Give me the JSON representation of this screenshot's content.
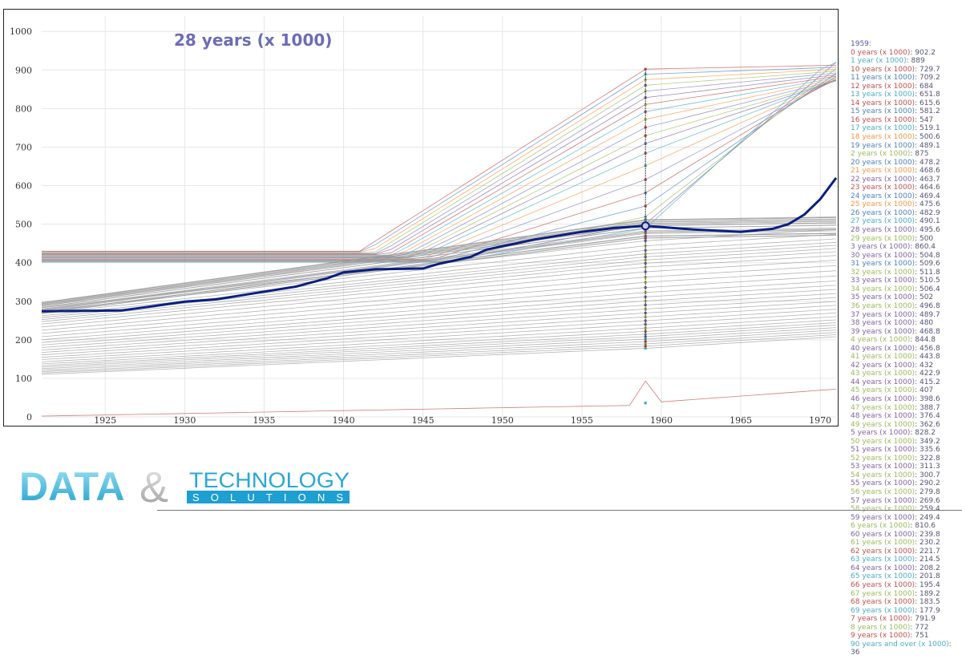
{
  "chart_data": {
    "type": "line",
    "title": "28 years (x 1000)",
    "xlim": [
      1921,
      1971
    ],
    "ylim": [
      0,
      1040
    ],
    "x_ticks": [
      1925,
      1930,
      1935,
      1940,
      1945,
      1950,
      1955,
      1960,
      1965,
      1970
    ],
    "y_ticks": [
      0,
      100,
      200,
      300,
      400,
      500,
      600,
      700,
      800,
      900,
      1000
    ],
    "grid": true,
    "highlight_year": 1959,
    "highlight_series": "28 years (x 1000)",
    "highlight_series_points": [
      [
        1921,
        274
      ],
      [
        1926,
        276
      ],
      [
        1928,
        287
      ],
      [
        1930,
        299
      ],
      [
        1932,
        305
      ],
      [
        1935,
        325
      ],
      [
        1937,
        338
      ],
      [
        1939,
        360
      ],
      [
        1940,
        375
      ],
      [
        1942,
        383
      ],
      [
        1945,
        385
      ],
      [
        1946,
        397
      ],
      [
        1948,
        415
      ],
      [
        1949,
        434
      ],
      [
        1952,
        460
      ],
      [
        1955,
        480
      ],
      [
        1957,
        490
      ],
      [
        1959,
        495.6
      ],
      [
        1962,
        486
      ],
      [
        1965,
        480
      ],
      [
        1967,
        488
      ],
      [
        1968,
        500
      ],
      [
        1969,
        525
      ],
      [
        1970,
        565
      ],
      [
        1971,
        620
      ]
    ],
    "series_colors": [
      "#c0504d",
      "#4f81bd",
      "#9bbb59",
      "#8064a2",
      "#4bacc6",
      "#f79646",
      "#7f7fbf"
    ]
  },
  "tooltip": {
    "date": "1959:",
    "entries": [
      {
        "label": "0 years (x 1000)",
        "value": "902.2",
        "color": "#c0504d"
      },
      {
        "label": "1 year (x 1000)",
        "value": "889",
        "color": "#4bacc6"
      },
      {
        "label": "10 years (x 1000)",
        "value": "729.7",
        "color": "#c0504d"
      },
      {
        "label": "11 years (x 1000)",
        "value": "709.2",
        "color": "#4f81bd"
      },
      {
        "label": "12 years (x 1000)",
        "value": "684",
        "color": "#c0504d"
      },
      {
        "label": "13 years (x 1000)",
        "value": "651.8",
        "color": "#4bacc6"
      },
      {
        "label": "14 years (x 1000)",
        "value": "615.6",
        "color": "#c0504d"
      },
      {
        "label": "15 years (x 1000)",
        "value": "581.2",
        "color": "#4f81bd"
      },
      {
        "label": "16 years (x 1000)",
        "value": "547",
        "color": "#c0504d"
      },
      {
        "label": "17 years (x 1000)",
        "value": "519.1",
        "color": "#4bacc6"
      },
      {
        "label": "18 years (x 1000)",
        "value": "500.6",
        "color": "#f79646"
      },
      {
        "label": "19 years (x 1000)",
        "value": "489.1",
        "color": "#4f81bd"
      },
      {
        "label": "2 years (x 1000)",
        "value": "875",
        "color": "#9bbb59"
      },
      {
        "label": "20 years (x 1000)",
        "value": "478.2",
        "color": "#4f81bd"
      },
      {
        "label": "21 years (x 1000)",
        "value": "468.6",
        "color": "#f79646"
      },
      {
        "label": "22 years (x 1000)",
        "value": "463.7",
        "color": "#8064a2"
      },
      {
        "label": "23 years (x 1000)",
        "value": "464.6",
        "color": "#c0504d"
      },
      {
        "label": "24 years (x 1000)",
        "value": "469.4",
        "color": "#4f81bd"
      },
      {
        "label": "25 years (x 1000)",
        "value": "475.6",
        "color": "#f79646"
      },
      {
        "label": "26 years (x 1000)",
        "value": "482.9",
        "color": "#4f81bd"
      },
      {
        "label": "27 years (x 1000)",
        "value": "490.1",
        "color": "#4bacc6"
      },
      {
        "label": "28 years (x 1000)",
        "value": "495.6",
        "color": "#8064a2"
      },
      {
        "label": "29 years (x 1000)",
        "value": "500",
        "color": "#9bbb59"
      },
      {
        "label": "3 years (x 1000)",
        "value": "860.4",
        "color": "#8064a2"
      },
      {
        "label": "30 years (x 1000)",
        "value": "504.8",
        "color": "#8064a2"
      },
      {
        "label": "31 years (x 1000)",
        "value": "509.6",
        "color": "#4f81bd"
      },
      {
        "label": "32 years (x 1000)",
        "value": "511.8",
        "color": "#9bbb59"
      },
      {
        "label": "33 years (x 1000)",
        "value": "510.5",
        "color": "#8064a2"
      },
      {
        "label": "34 years (x 1000)",
        "value": "506.4",
        "color": "#9bbb59"
      },
      {
        "label": "35 years (x 1000)",
        "value": "502",
        "color": "#8064a2"
      },
      {
        "label": "36 years (x 1000)",
        "value": "496.8",
        "color": "#9bbb59"
      },
      {
        "label": "37 years (x 1000)",
        "value": "489.7",
        "color": "#8064a2"
      },
      {
        "label": "38 years (x 1000)",
        "value": "480",
        "color": "#8064a2"
      },
      {
        "label": "39 years (x 1000)",
        "value": "468.8",
        "color": "#8064a2"
      },
      {
        "label": "4 years (x 1000)",
        "value": "844.8",
        "color": "#9bbb59"
      },
      {
        "label": "40 years (x 1000)",
        "value": "456.8",
        "color": "#8064a2"
      },
      {
        "label": "41 years (x 1000)",
        "value": "443.8",
        "color": "#9bbb59"
      },
      {
        "label": "42 years (x 1000)",
        "value": "432",
        "color": "#8064a2"
      },
      {
        "label": "43 years (x 1000)",
        "value": "422.9",
        "color": "#9bbb59"
      },
      {
        "label": "44 years (x 1000)",
        "value": "415.2",
        "color": "#8064a2"
      },
      {
        "label": "45 years (x 1000)",
        "value": "407",
        "color": "#9bbb59"
      },
      {
        "label": "46 years (x 1000)",
        "value": "398.6",
        "color": "#8064a2"
      },
      {
        "label": "47 years (x 1000)",
        "value": "388.7",
        "color": "#9bbb59"
      },
      {
        "label": "48 years (x 1000)",
        "value": "376.4",
        "color": "#8064a2"
      },
      {
        "label": "49 years (x 1000)",
        "value": "362.6",
        "color": "#9bbb59"
      },
      {
        "label": "5 years (x 1000)",
        "value": "828.2",
        "color": "#8064a2"
      },
      {
        "label": "50 years (x 1000)",
        "value": "349.2",
        "color": "#9bbb59"
      },
      {
        "label": "51 years (x 1000)",
        "value": "335.6",
        "color": "#8064a2"
      },
      {
        "label": "52 years (x 1000)",
        "value": "322.8",
        "color": "#9bbb59"
      },
      {
        "label": "53 years (x 1000)",
        "value": "311.3",
        "color": "#8064a2"
      },
      {
        "label": "54 years (x 1000)",
        "value": "300.7",
        "color": "#9bbb59"
      },
      {
        "label": "55 years (x 1000)",
        "value": "290.2",
        "color": "#8064a2"
      },
      {
        "label": "56 years (x 1000)",
        "value": "279.8",
        "color": "#9bbb59"
      },
      {
        "label": "57 years (x 1000)",
        "value": "269.6",
        "color": "#8064a2"
      },
      {
        "label": "58 years (x 1000)",
        "value": "259.4",
        "color": "#9bbb59"
      },
      {
        "label": "59 years (x 1000)",
        "value": "249.4",
        "color": "#8064a2"
      },
      {
        "label": "6 years (x 1000)",
        "value": "810.6",
        "color": "#9bbb59"
      },
      {
        "label": "60 years (x 1000)",
        "value": "239.8",
        "color": "#8064a2"
      },
      {
        "label": "61 years (x 1000)",
        "value": "230.2",
        "color": "#9bbb59"
      },
      {
        "label": "62 years (x 1000)",
        "value": "221.7",
        "color": "#c0504d"
      },
      {
        "label": "63 years (x 1000)",
        "value": "214.5",
        "color": "#4bacc6"
      },
      {
        "label": "64 years (x 1000)",
        "value": "208.2",
        "color": "#8064a2"
      },
      {
        "label": "65 years (x 1000)",
        "value": "201.8",
        "color": "#4bacc6"
      },
      {
        "label": "66 years (x 1000)",
        "value": "195.4",
        "color": "#c0504d"
      },
      {
        "label": "67 years (x 1000)",
        "value": "189.2",
        "color": "#9bbb59"
      },
      {
        "label": "68 years (x 1000)",
        "value": "183.5",
        "color": "#c0504d"
      },
      {
        "label": "69 years (x 1000)",
        "value": "177.9",
        "color": "#4bacc6"
      },
      {
        "label": "7 years (x 1000)",
        "value": "791.9",
        "color": "#c0504d"
      },
      {
        "label": "8 years (x 1000)",
        "value": "772",
        "color": "#9bbb59"
      },
      {
        "label": "9 years (x 1000)",
        "value": "751",
        "color": "#c0504d"
      },
      {
        "label": "90 years and over (x 1000)",
        "value": "36",
        "color": "#4bacc6"
      }
    ]
  },
  "logo": {
    "word1": "DATA",
    "amp": "&",
    "word2": "TECHNOLOGY",
    "word3": "SOLUTIONS"
  }
}
